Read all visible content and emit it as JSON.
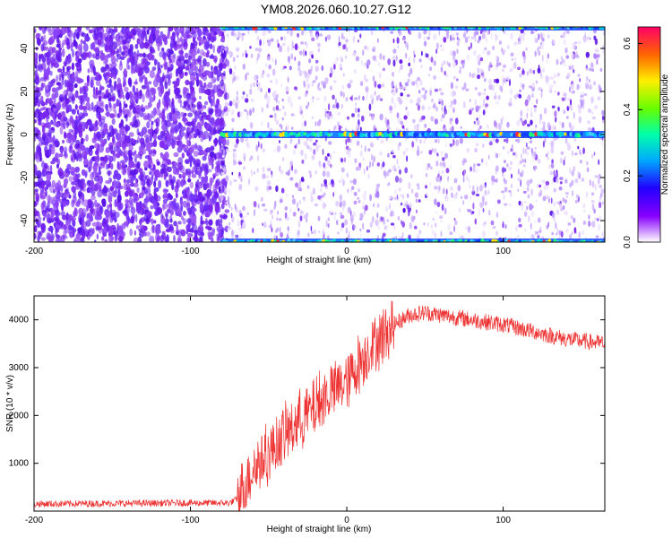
{
  "title": "YM08.2026.060.10.27.G12",
  "chart_data": [
    {
      "type": "heatmap",
      "xlabel": "Height of straight line (km)",
      "ylabel": "Frequency (Hz)",
      "xlim": [
        -200,
        165
      ],
      "ylim": [
        -50,
        50
      ],
      "xticks": [
        -200,
        -100,
        0,
        100
      ],
      "yticks": [
        -40,
        -20,
        0,
        20,
        40
      ],
      "colorbar": {
        "label": "Normalized spectral amplitude",
        "range": [
          0.0,
          0.65
        ],
        "ticks": [
          0.0,
          0.2,
          0.4,
          0.6
        ]
      },
      "features": [
        {
          "frequency_hz": 0,
          "x_start_km": -80,
          "x_end_km": 165
        },
        {
          "frequency_hz": -50,
          "x_start_km": -80,
          "x_end_km": 165
        },
        {
          "frequency_hz": 50,
          "x_start_km": -80,
          "x_end_km": 165
        }
      ],
      "noise_floor_boundary_km": -80
    },
    {
      "type": "line",
      "xlabel": "Height of straight line (km)",
      "ylabel": "SNR (10 * v/v)",
      "xlim": [
        -200,
        165
      ],
      "ylim": [
        0,
        4500
      ],
      "xticks": [
        -200,
        -100,
        0,
        100
      ],
      "yticks": [
        1000,
        2000,
        3000,
        4000
      ],
      "color": "#ee3333",
      "x": [
        -200,
        -150,
        -100,
        -75,
        -70,
        -60,
        -50,
        -40,
        -30,
        -20,
        -10,
        0,
        10,
        20,
        30,
        40,
        50,
        60,
        80,
        100,
        120,
        140,
        165
      ],
      "y": [
        150,
        160,
        170,
        170,
        250,
        900,
        1200,
        1600,
        1900,
        2200,
        2500,
        2700,
        3200,
        3600,
        3900,
        4100,
        4150,
        4100,
        4000,
        3900,
        3750,
        3600,
        3500
      ]
    }
  ]
}
